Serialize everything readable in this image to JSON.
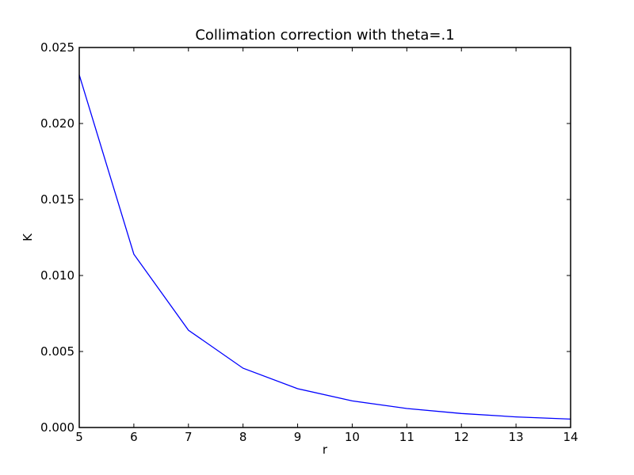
{
  "chart_data": {
    "type": "line",
    "title": "Collimation correction with theta=.1",
    "xlabel": "r",
    "ylabel": "K",
    "xlim": [
      5,
      14
    ],
    "ylim": [
      0,
      0.025
    ],
    "x_ticks": [
      "5",
      "6",
      "7",
      "8",
      "9",
      "10",
      "11",
      "12",
      "13",
      "14"
    ],
    "y_ticks": [
      "0.000",
      "0.005",
      "0.010",
      "0.015",
      "0.020",
      "0.025"
    ],
    "grid": false,
    "series": [
      {
        "color": "#0000ff",
        "x": [
          5,
          6,
          7,
          8,
          9,
          10,
          11,
          12,
          13,
          14
        ],
        "y": [
          0.0232,
          0.0114,
          0.0064,
          0.0039,
          0.00255,
          0.00175,
          0.00125,
          0.00092,
          0.0007,
          0.00055
        ]
      }
    ]
  }
}
